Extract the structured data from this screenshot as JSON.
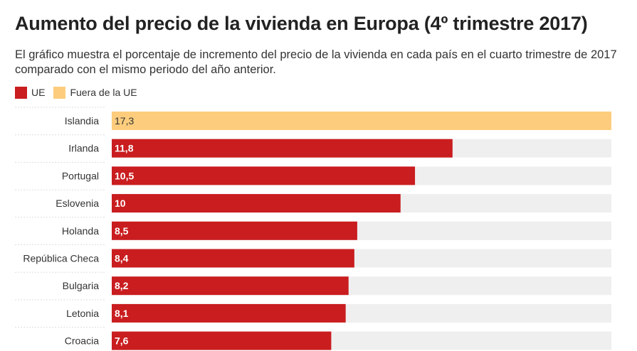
{
  "title": "Aumento del precio de la vivienda en Europa (4º trimestre 2017)",
  "subtitle": "El gráfico muestra el porcentaje de incremento del precio de la vivienda en cada país en el cuarto trimestre de 2017 comparado con el mismo periodo del año anterior.",
  "legend": [
    {
      "label": "UE",
      "color": "#c91d1f"
    },
    {
      "label": "Fuera de la UE",
      "color": "#fdcd7d"
    }
  ],
  "chart_data": {
    "type": "bar",
    "orientation": "horizontal",
    "xlim": [
      0,
      17.3
    ],
    "categories": [
      "Islandia",
      "Irlanda",
      "Portugal",
      "Eslovenia",
      "Holanda",
      "República Checa",
      "Bulgaria",
      "Letonia",
      "Croacia"
    ],
    "values": [
      17.3,
      11.8,
      10.5,
      10,
      8.5,
      8.4,
      8.2,
      8.1,
      7.6
    ],
    "value_labels": [
      "17,3",
      "11,8",
      "10,5",
      "10",
      "8,5",
      "8,4",
      "8,2",
      "8,1",
      "7,6"
    ],
    "groups": [
      "Fuera de la UE",
      "UE",
      "UE",
      "UE",
      "UE",
      "UE",
      "UE",
      "UE",
      "UE"
    ],
    "colors": {
      "UE": "#c91d1f",
      "Fuera de la UE": "#fdcd7d",
      "track": "#efefef"
    }
  }
}
